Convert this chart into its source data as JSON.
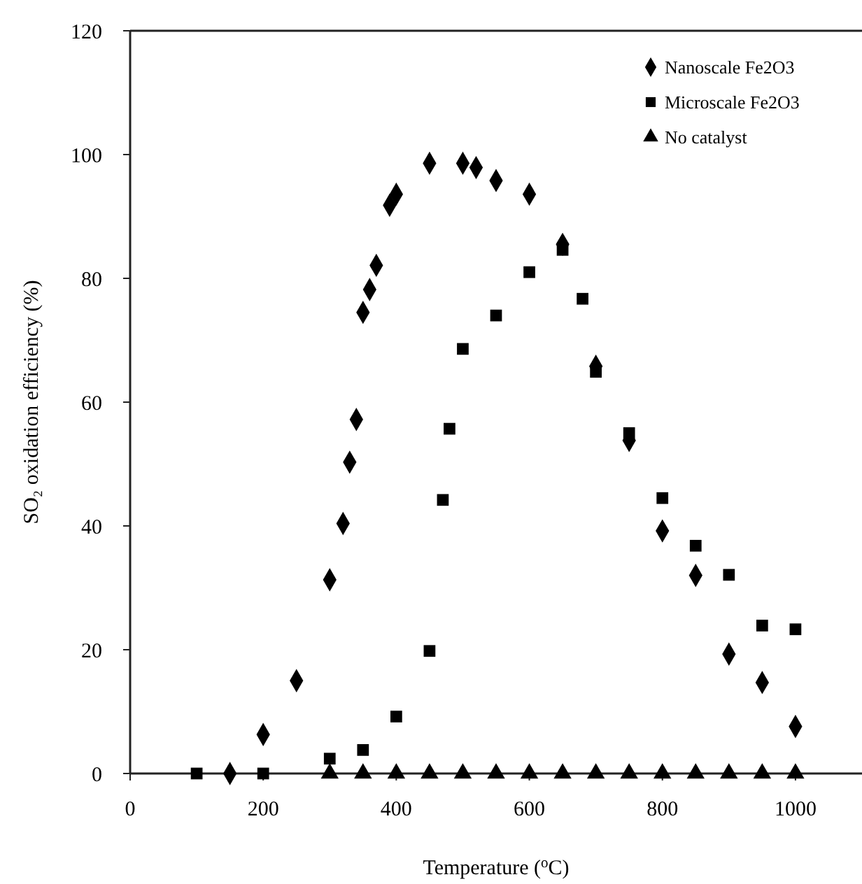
{
  "chart_data": {
    "type": "scatter",
    "xlabel": "Temperature ($^{o}$C)",
    "ylabel": "SO₂ oxidation efficiency (%)",
    "xlim": [
      0,
      1100
    ],
    "ylim": [
      0,
      120
    ],
    "xticks": [
      0,
      200,
      400,
      600,
      800,
      1000
    ],
    "yticks": [
      0,
      20,
      40,
      60,
      80,
      100,
      120
    ],
    "grid": false,
    "legend": "top right",
    "series": [
      {
        "name": "Nanoscale Fe2O3",
        "color": "#000000",
        "marker": "diamond",
        "x": [
          150,
          200,
          250,
          300,
          320,
          330,
          340,
          350,
          360,
          370,
          390,
          400,
          450,
          500,
          520,
          550,
          600,
          650,
          700,
          750,
          800,
          850,
          900,
          950,
          1000
        ],
        "values": [
          0,
          6.3,
          15,
          31.3,
          40.4,
          50.3,
          57.2,
          74.5,
          78.2,
          82.1,
          91.8,
          93.6,
          98.6,
          98.6,
          97.9,
          95.8,
          93.6,
          85.5,
          65.8,
          53.8,
          39.2,
          32,
          19.3,
          14.7,
          7.6
        ]
      },
      {
        "name": "Microscale Fe2O3",
        "color": "#000000",
        "marker": "square",
        "x": [
          100,
          200,
          300,
          350,
          400,
          450,
          470,
          480,
          500,
          550,
          600,
          650,
          680,
          700,
          750,
          800,
          850,
          900,
          950,
          1000
        ],
        "values": [
          0,
          0,
          2.4,
          3.8,
          9.2,
          19.8,
          44.2,
          55.7,
          68.6,
          74,
          81,
          84.6,
          76.7,
          64.9,
          55,
          44.5,
          36.8,
          32.1,
          23.9,
          23.3
        ]
      },
      {
        "name": "No catalyst",
        "color": "#000000",
        "marker": "triangle",
        "x": [
          300,
          350,
          400,
          450,
          500,
          550,
          600,
          650,
          700,
          750,
          800,
          850,
          900,
          950,
          1000
        ],
        "values": [
          0,
          0,
          0,
          0,
          0,
          0,
          0,
          0,
          0,
          0,
          0,
          0,
          0,
          0,
          0
        ]
      }
    ]
  }
}
